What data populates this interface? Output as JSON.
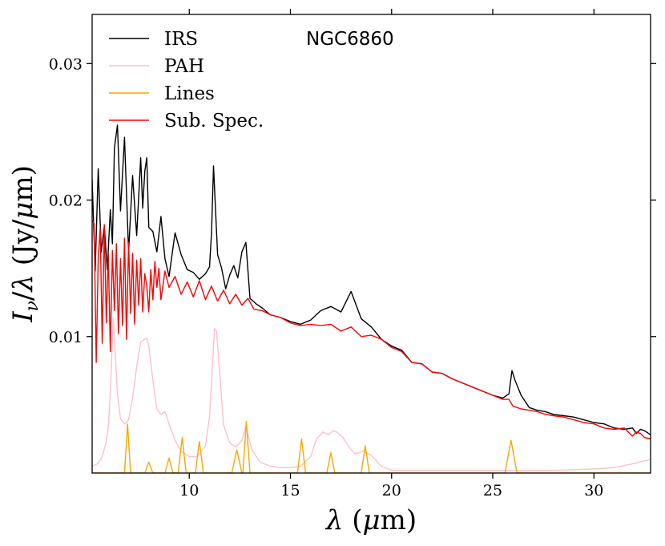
{
  "chart_data": {
    "type": "line",
    "title": "",
    "annotation": "NGC6860",
    "xlabel": "λ (μm)",
    "ylabel": "Iν/λ (Jy/μm)",
    "xlim": [
      5.2,
      32.8
    ],
    "ylim": [
      0.0,
      0.0336
    ],
    "xticks": [
      10,
      15,
      20,
      25,
      30
    ],
    "xtick_labels": [
      "10",
      "15",
      "20",
      "25",
      "30"
    ],
    "yticks": [
      0.01,
      0.02,
      0.03
    ],
    "ytick_labels": [
      "0.01",
      "0.02",
      "0.03"
    ],
    "legend_position": "top-left",
    "grid": false,
    "series": [
      {
        "name": "IRS",
        "color": "#000000",
        "x": [
          5.2,
          5.35,
          5.5,
          5.65,
          5.8,
          5.95,
          6.1,
          6.2,
          6.3,
          6.45,
          6.6,
          6.8,
          7.0,
          7.2,
          7.4,
          7.6,
          7.7,
          7.8,
          7.9,
          8.0,
          8.2,
          8.4,
          8.6,
          8.8,
          9.0,
          9.3,
          9.6,
          9.9,
          10.2,
          10.5,
          10.8,
          11.0,
          11.1,
          11.2,
          11.3,
          11.4,
          11.6,
          11.8,
          12.0,
          12.2,
          12.4,
          12.6,
          12.8,
          13.0,
          13.3,
          13.6,
          14.0,
          14.5,
          15.0,
          15.5,
          16.0,
          16.5,
          17.0,
          17.5,
          18.0,
          18.5,
          19.0,
          19.5,
          20.0,
          20.5,
          21.0,
          21.5,
          22.0,
          22.5,
          23.0,
          23.5,
          24.0,
          24.5,
          25.0,
          25.5,
          25.8,
          25.95,
          26.1,
          26.4,
          26.8,
          27.2,
          27.6,
          28.0,
          28.5,
          29.0,
          29.5,
          30.0,
          30.5,
          31.0,
          31.5,
          31.9,
          32.1,
          32.3,
          32.5,
          32.8
        ],
        "values": [
          0.0215,
          0.0148,
          0.0223,
          0.0162,
          0.0181,
          0.0149,
          0.0193,
          0.0168,
          0.0238,
          0.0255,
          0.0192,
          0.0246,
          0.0162,
          0.0218,
          0.0174,
          0.0231,
          0.0194,
          0.0221,
          0.0231,
          0.018,
          0.0177,
          0.0162,
          0.0188,
          0.0157,
          0.0144,
          0.0176,
          0.016,
          0.0149,
          0.0147,
          0.0142,
          0.0146,
          0.0151,
          0.0176,
          0.0225,
          0.0193,
          0.016,
          0.015,
          0.0135,
          0.0145,
          0.0152,
          0.0143,
          0.0162,
          0.0169,
          0.0128,
          0.0124,
          0.0121,
          0.0116,
          0.0114,
          0.0111,
          0.0109,
          0.0112,
          0.0119,
          0.0122,
          0.0118,
          0.0133,
          0.0113,
          0.0107,
          0.0098,
          0.0093,
          0.009,
          0.0081,
          0.008,
          0.0074,
          0.0073,
          0.0069,
          0.0066,
          0.0063,
          0.006,
          0.0057,
          0.0055,
          0.0058,
          0.0075,
          0.0068,
          0.0057,
          0.0048,
          0.0046,
          0.0045,
          0.0043,
          0.0042,
          0.0041,
          0.0039,
          0.0037,
          0.0036,
          0.0033,
          0.0032,
          0.0033,
          0.0029,
          0.0032,
          0.0031,
          0.0028
        ]
      },
      {
        "name": "PAH",
        "color": "#ffc0cb",
        "x": [
          5.2,
          5.5,
          5.7,
          5.9,
          6.0,
          6.1,
          6.2,
          6.25,
          6.3,
          6.45,
          6.6,
          6.8,
          7.0,
          7.2,
          7.4,
          7.6,
          7.8,
          7.9,
          8.0,
          8.2,
          8.4,
          8.6,
          8.8,
          9.0,
          9.3,
          9.6,
          10.0,
          10.4,
          10.8,
          11.0,
          11.15,
          11.25,
          11.35,
          11.5,
          11.7,
          12.0,
          12.3,
          12.6,
          12.8,
          13.1,
          13.5,
          14.0,
          14.5,
          15.0,
          15.5,
          16.0,
          16.3,
          16.6,
          16.9,
          17.1,
          17.3,
          17.6,
          17.9,
          18.2,
          18.6,
          19.0,
          19.5,
          20.0,
          21.0,
          22.0,
          24.0,
          26.0,
          28.0,
          30.0,
          31.0,
          32.0,
          32.8
        ],
        "values": [
          0.0005,
          0.0007,
          0.0012,
          0.0023,
          0.0034,
          0.0059,
          0.0099,
          0.0113,
          0.0098,
          0.0058,
          0.004,
          0.0036,
          0.0039,
          0.0055,
          0.0078,
          0.0096,
          0.0098,
          0.0099,
          0.0093,
          0.0068,
          0.0047,
          0.0043,
          0.0045,
          0.0036,
          0.0024,
          0.0016,
          0.0012,
          0.0012,
          0.002,
          0.0041,
          0.008,
          0.0106,
          0.0104,
          0.0074,
          0.0035,
          0.0022,
          0.0019,
          0.0024,
          0.0034,
          0.0017,
          0.0008,
          0.0005,
          0.0004,
          0.0004,
          0.0005,
          0.0012,
          0.0025,
          0.003,
          0.0028,
          0.0031,
          0.003,
          0.0026,
          0.0019,
          0.0014,
          0.0016,
          0.0013,
          0.0005,
          0.0002,
          0.0002,
          0.0002,
          0.0002,
          0.0002,
          0.0002,
          0.0003,
          0.0004,
          0.0007,
          0.001
        ]
      },
      {
        "name": "Lines",
        "color": "#ffa500",
        "x": [
          5.2,
          6.8,
          6.95,
          7.1,
          7.8,
          8.0,
          8.2,
          8.8,
          9.0,
          9.2,
          9.45,
          9.65,
          9.85,
          10.3,
          10.5,
          10.7,
          11.1,
          11.3,
          12.1,
          12.35,
          12.6,
          12.65,
          12.82,
          13.0,
          15.35,
          15.55,
          15.75,
          16.8,
          17.0,
          17.2,
          18.5,
          18.7,
          18.9,
          25.6,
          25.9,
          26.2,
          32.8
        ],
        "values": [
          0.0,
          0.0,
          0.0036,
          0.0,
          0.0,
          0.0008,
          0.0,
          0.0,
          0.0011,
          0.0,
          0.0,
          0.0026,
          0.0,
          0.0,
          0.0023,
          0.0,
          0.0,
          0.0,
          0.0,
          0.0017,
          0.0,
          0.0,
          0.0038,
          0.0,
          0.0,
          0.0025,
          0.0,
          0.0,
          0.0015,
          0.0,
          0.0,
          0.002,
          0.0,
          0.0,
          0.0024,
          0.0,
          0.0
        ]
      },
      {
        "name": "Sub. Spec.",
        "color": "#ff0000",
        "x": [
          5.2,
          5.3,
          5.4,
          5.5,
          5.6,
          5.7,
          5.8,
          5.9,
          6.0,
          6.1,
          6.2,
          6.3,
          6.4,
          6.5,
          6.6,
          6.7,
          6.8,
          6.9,
          7.0,
          7.1,
          7.2,
          7.3,
          7.4,
          7.5,
          7.6,
          7.7,
          7.8,
          7.9,
          8.0,
          8.1,
          8.2,
          8.3,
          8.4,
          8.5,
          8.6,
          8.8,
          9.0,
          9.3,
          9.6,
          9.9,
          10.2,
          10.5,
          10.8,
          11.1,
          11.4,
          11.7,
          12.0,
          12.3,
          12.6,
          12.9,
          13.2,
          13.6,
          14.0,
          14.5,
          15.0,
          15.5,
          16.0,
          16.5,
          17.0,
          17.5,
          18.0,
          18.5,
          19.0,
          19.5,
          20.0,
          20.5,
          21.0,
          21.5,
          22.0,
          22.5,
          23.0,
          23.5,
          24.0,
          24.5,
          25.0,
          25.5,
          25.8,
          26.0,
          26.4,
          26.8,
          27.2,
          27.6,
          28.0,
          28.5,
          29.0,
          29.5,
          30.0,
          30.5,
          31.0,
          31.5,
          31.9,
          32.1,
          32.3,
          32.5,
          32.8
        ],
        "values": [
          0.0185,
          0.0183,
          0.0081,
          0.0157,
          0.018,
          0.0095,
          0.0182,
          0.011,
          0.0161,
          0.0089,
          0.0163,
          0.0119,
          0.0168,
          0.0102,
          0.0157,
          0.0108,
          0.0172,
          0.0098,
          0.0169,
          0.0117,
          0.0161,
          0.0109,
          0.0156,
          0.0123,
          0.0157,
          0.0118,
          0.0146,
          0.0137,
          0.0118,
          0.0149,
          0.0127,
          0.0155,
          0.0136,
          0.015,
          0.0127,
          0.0148,
          0.0136,
          0.0144,
          0.0131,
          0.014,
          0.0129,
          0.0141,
          0.0127,
          0.0137,
          0.0126,
          0.0134,
          0.0124,
          0.0131,
          0.0123,
          0.0128,
          0.012,
          0.0119,
          0.0116,
          0.0114,
          0.011,
          0.0108,
          0.0109,
          0.0108,
          0.0109,
          0.0104,
          0.0107,
          0.01,
          0.0101,
          0.0098,
          0.0092,
          0.0089,
          0.0081,
          0.008,
          0.0074,
          0.0073,
          0.0069,
          0.0066,
          0.0063,
          0.006,
          0.0057,
          0.0054,
          0.0054,
          0.0049,
          0.0047,
          0.0046,
          0.0045,
          0.0043,
          0.0042,
          0.0041,
          0.0039,
          0.0037,
          0.0036,
          0.0033,
          0.0032,
          0.0033,
          0.0027,
          0.003,
          0.0029,
          0.0026,
          0.0025
        ]
      }
    ]
  }
}
